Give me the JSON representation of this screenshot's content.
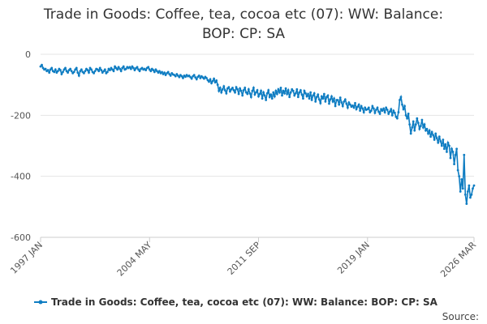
{
  "chart_data": {
    "type": "line",
    "title": "Trade in Goods: Coffee, tea, cocoa etc (07): WW: Balance: BOP: CP: SA",
    "source": "Source:",
    "ylim": [
      -600,
      0
    ],
    "yticks": [
      0,
      -200,
      -400,
      -600
    ],
    "grid": true,
    "categories": [
      "1997 JAN",
      null,
      null,
      null,
      null,
      null,
      null,
      null,
      null,
      null,
      null,
      null,
      null,
      null,
      null,
      null,
      null,
      null,
      null,
      null,
      null,
      null,
      null,
      null,
      null,
      null,
      null,
      null,
      null,
      null,
      null,
      null,
      null,
      null,
      null,
      null,
      null,
      null,
      null,
      null,
      null,
      null,
      null,
      null,
      null,
      null,
      null,
      null,
      null,
      null,
      null,
      null,
      null,
      null,
      null,
      null,
      null,
      null,
      null,
      null,
      null,
      null,
      null,
      null,
      null,
      null,
      null,
      null,
      null,
      null,
      null,
      null,
      null,
      null,
      null,
      null,
      null,
      null,
      null,
      null,
      null,
      null,
      null,
      null,
      null,
      null,
      null,
      null,
      "2004 MAY",
      null,
      null,
      null,
      null,
      null,
      null,
      null,
      null,
      null,
      null,
      null,
      null,
      null,
      null,
      null,
      null,
      null,
      null,
      null,
      null,
      null,
      null,
      null,
      null,
      null,
      null,
      null,
      null,
      null,
      null,
      null,
      null,
      null,
      null,
      null,
      null,
      null,
      null,
      null,
      null,
      null,
      null,
      null,
      null,
      null,
      null,
      null,
      null,
      null,
      null,
      null,
      null,
      null,
      null,
      null,
      null,
      null,
      null,
      null,
      null,
      null,
      null,
      null,
      null,
      null,
      null,
      null,
      null,
      null,
      null,
      null,
      null,
      null,
      null,
      null,
      null,
      null,
      null,
      null,
      null,
      null,
      null,
      null,
      null,
      null,
      null,
      null,
      "2011 SEP",
      null,
      null,
      null,
      null,
      null,
      null,
      null,
      null,
      null,
      null,
      null,
      null,
      null,
      null,
      null,
      null,
      null,
      null,
      null,
      null,
      null,
      null,
      null,
      null,
      null,
      null,
      null,
      null,
      null,
      null,
      null,
      null,
      null,
      null,
      null,
      null,
      null,
      null,
      null,
      null,
      null,
      null,
      null,
      null,
      null,
      null,
      null,
      null,
      null,
      null,
      null,
      null,
      null,
      null,
      null,
      null,
      null,
      null,
      null,
      null,
      null,
      null,
      null,
      null,
      null,
      null,
      null,
      null,
      null,
      null,
      null,
      null,
      null,
      null,
      null,
      null,
      null,
      null,
      null,
      null,
      null,
      null,
      null,
      null,
      null,
      null,
      null,
      "2019 JAN",
      null,
      null,
      null,
      null,
      null,
      null,
      null,
      null,
      null,
      null,
      null,
      null,
      null,
      null,
      null,
      null,
      null,
      null,
      null,
      null,
      null,
      null,
      null,
      null,
      null,
      null,
      null,
      null,
      null,
      null,
      null,
      null,
      null,
      null,
      null,
      null,
      null,
      null,
      null,
      null,
      null,
      null,
      null,
      null,
      null,
      null,
      null,
      null,
      null,
      null,
      null,
      null,
      null,
      null,
      null,
      null,
      null,
      null,
      null,
      null,
      null,
      null,
      null,
      null,
      null,
      null,
      null,
      null,
      null,
      null,
      null,
      null,
      null,
      null,
      null,
      null,
      null,
      null,
      null,
      null,
      null,
      null,
      null,
      null,
      null,
      "2026 MAR"
    ],
    "series": [
      {
        "name": "Trade in Goods: Coffee, tea, cocoa etc (07): WW: Balance: BOP: CP: SA",
        "color": "#0f7dc2",
        "values": [
          -40,
          -35,
          -45,
          -50,
          -48,
          -55,
          -52,
          -60,
          -50,
          -45,
          -55,
          -58,
          -50,
          -60,
          -55,
          -48,
          -52,
          -65,
          -58,
          -50,
          -45,
          -55,
          -60,
          -52,
          -48,
          -55,
          -62,
          -58,
          -50,
          -45,
          -60,
          -70,
          -55,
          -50,
          -58,
          -62,
          -55,
          -48,
          -52,
          -60,
          -45,
          -50,
          -58,
          -62,
          -55,
          -48,
          -50,
          -55,
          -45,
          -52,
          -60,
          -55,
          -50,
          -62,
          -58,
          -48,
          -52,
          -45,
          -50,
          -55,
          -40,
          -45,
          -50,
          -42,
          -48,
          -55,
          -45,
          -40,
          -50,
          -48,
          -42,
          -45,
          -42,
          -48,
          -40,
          -45,
          -52,
          -46,
          -42,
          -50,
          -55,
          -48,
          -45,
          -50,
          -48,
          -52,
          -45,
          -42,
          -50,
          -55,
          -48,
          -52,
          -58,
          -50,
          -55,
          -60,
          -55,
          -62,
          -58,
          -65,
          -60,
          -68,
          -62,
          -58,
          -65,
          -70,
          -62,
          -66,
          -68,
          -72,
          -65,
          -70,
          -75,
          -68,
          -72,
          -78,
          -70,
          -74,
          -68,
          -72,
          -70,
          -75,
          -80,
          -72,
          -68,
          -76,
          -82,
          -74,
          -70,
          -78,
          -72,
          -76,
          -80,
          -74,
          -78,
          -85,
          -90,
          -82,
          -95,
          -88,
          -80,
          -92,
          -86,
          -100,
          -120,
          -110,
          -125,
          -115,
          -105,
          -118,
          -128,
          -112,
          -108,
          -122,
          -115,
          -110,
          -118,
          -125,
          -108,
          -115,
          -130,
          -112,
          -120,
          -135,
          -118,
          -110,
          -125,
          -130,
          -115,
          -128,
          -140,
          -120,
          -110,
          -132,
          -125,
          -118,
          -138,
          -130,
          -120,
          -145,
          -125,
          -135,
          -150,
          -128,
          -118,
          -140,
          -132,
          -145,
          -125,
          -138,
          -120,
          -130,
          -115,
          -125,
          -110,
          -135,
          -120,
          -128,
          -112,
          -130,
          -118,
          -140,
          -125,
          -115,
          -120,
          -135,
          -128,
          -115,
          -140,
          -125,
          -118,
          -132,
          -145,
          -120,
          -128,
          -138,
          -130,
          -145,
          -125,
          -150,
          -135,
          -128,
          -155,
          -140,
          -132,
          -148,
          -160,
          -138,
          -145,
          -130,
          -155,
          -140,
          -135,
          -162,
          -148,
          -138,
          -155,
          -145,
          -170,
          -150,
          -150,
          -165,
          -142,
          -158,
          -170,
          -155,
          -148,
          -162,
          -175,
          -158,
          -165,
          -172,
          -168,
          -175,
          -160,
          -180,
          -172,
          -165,
          -185,
          -170,
          -178,
          -190,
          -175,
          -182,
          -180,
          -175,
          -190,
          -185,
          -170,
          -178,
          -192,
          -182,
          -175,
          -188,
          -195,
          -180,
          -185,
          -178,
          -190,
          -175,
          -182,
          -195,
          -188,
          -180,
          -200,
          -185,
          -192,
          -205,
          -210,
          -190,
          -150,
          -140,
          -165,
          -180,
          -170,
          -200,
          -210,
          -195,
          -230,
          -260,
          -240,
          -220,
          -250,
          -230,
          -210,
          -225,
          -245,
          -235,
          -215,
          -240,
          -230,
          -250,
          -245,
          -260,
          -250,
          -270,
          -255,
          -265,
          -280,
          -260,
          -275,
          -290,
          -270,
          -285,
          -300,
          -280,
          -310,
          -295,
          -320,
          -290,
          -300,
          -340,
          -310,
          -320,
          -360,
          -330,
          -310,
          -380,
          -400,
          -450,
          -410,
          -440,
          -330,
          -460,
          -490,
          -450,
          -430,
          -470,
          -460,
          -440,
          -430
        ]
      }
    ]
  }
}
